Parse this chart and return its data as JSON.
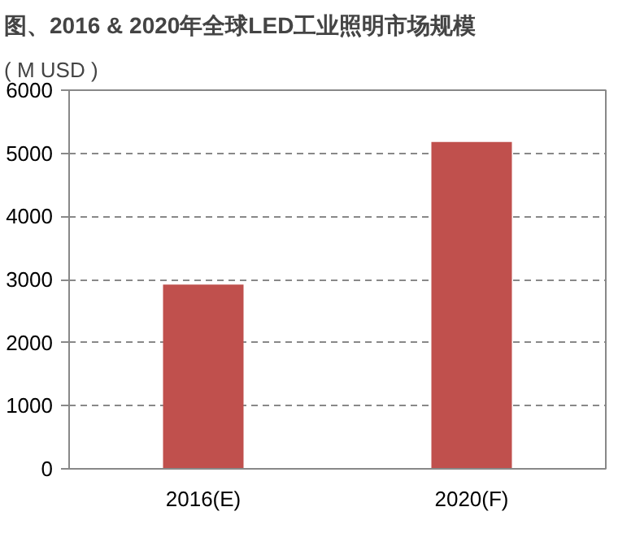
{
  "chart_data": {
    "type": "bar",
    "title": "图、2016 & 2020年全球LED工业照明市场规模",
    "ylabel": "( M USD )",
    "categories": [
      "2016(E)",
      "2020(F)"
    ],
    "values": [
      2920,
      5180
    ],
    "color": "#c0504d",
    "ylim": [
      0,
      6000
    ],
    "yticks": [
      0,
      1000,
      2000,
      3000,
      4000,
      5000,
      6000
    ],
    "grid": "y"
  }
}
